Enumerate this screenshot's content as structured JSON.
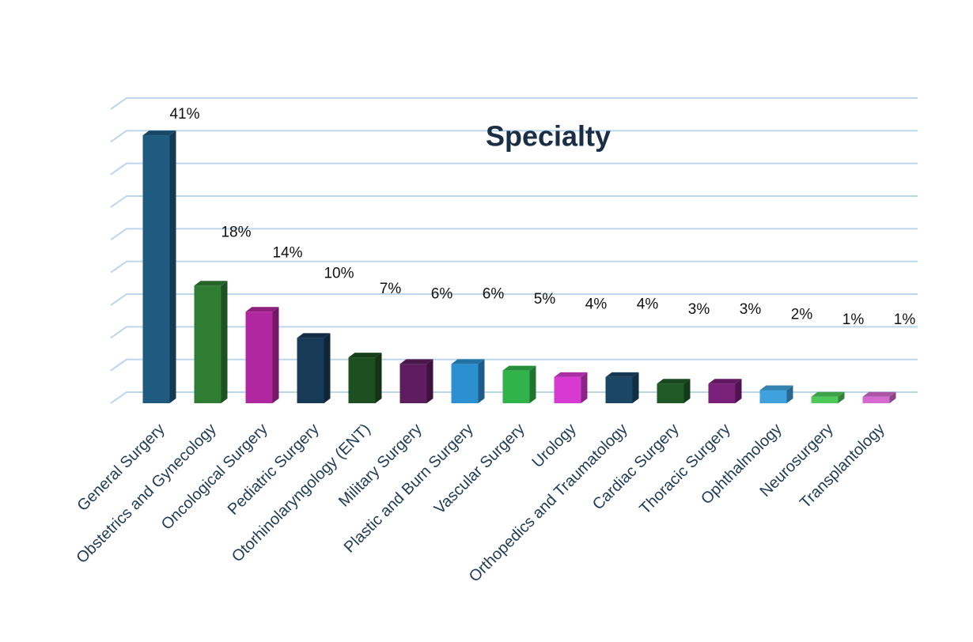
{
  "chart_data": {
    "type": "bar3d",
    "title": "Specialty",
    "categories": [
      "General Surgery",
      "Obstetrics and Gynecology",
      "Oncological Surgery",
      "Pediatric Surgery",
      "Otorhinolaryngology (ENT)",
      "Military Surgery",
      "Plastic and Burn Surgery",
      "Vascular Surgery",
      "Urology",
      "Orthopedics and Traumatology",
      "Cardiac Surgery",
      "Thoracic Surgery",
      "Ophthalmology",
      "Neurosurgery",
      "Transplantology"
    ],
    "values": [
      41,
      18,
      14,
      10,
      7,
      6,
      6,
      5,
      4,
      4,
      3,
      3,
      2,
      1,
      1
    ],
    "value_labels": [
      "41%",
      "18%",
      "14%",
      "10%",
      "7%",
      "6%",
      "6%",
      "5%",
      "4%",
      "4%",
      "3%",
      "3%",
      "2%",
      "1%",
      "1%"
    ],
    "colors": [
      "#1f5a80",
      "#2e7d32",
      "#b0279f",
      "#173a57",
      "#1d4f21",
      "#5e1d5e",
      "#2b8fd0",
      "#2fb34a",
      "#d63ad0",
      "#1b4666",
      "#1f5a26",
      "#7a1f7a",
      "#3fa2dc",
      "#4cc95a",
      "#d46ad0"
    ],
    "ylim": [
      0,
      45
    ],
    "yticks": [
      0,
      5,
      10,
      15,
      20,
      25,
      30,
      35,
      40,
      45
    ],
    "grid": true
  }
}
